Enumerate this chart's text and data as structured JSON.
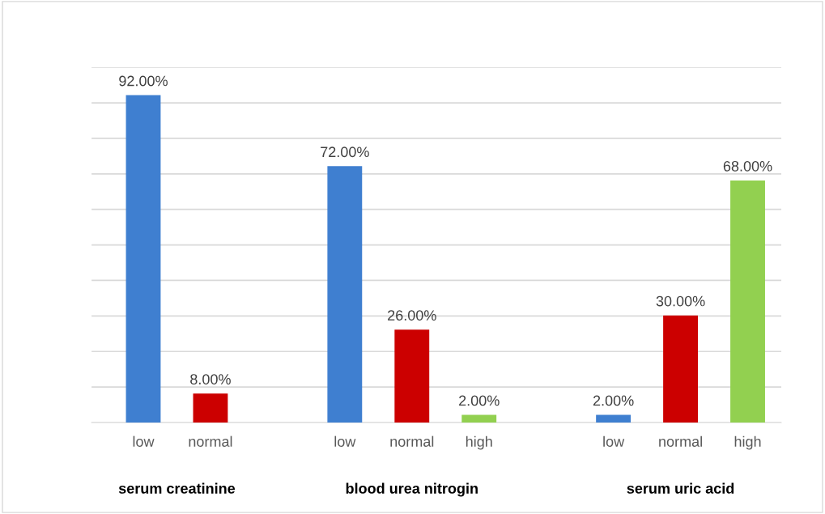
{
  "chart_data": {
    "type": "bar",
    "categories": [
      "low",
      "normal",
      null,
      "low",
      "normal",
      "high",
      null,
      "low",
      "normal",
      "high"
    ],
    "values": [
      92,
      8,
      null,
      72,
      26,
      2,
      null,
      2,
      30,
      68
    ],
    "colors": [
      "#3f7fd0",
      "#cc0000",
      "#cc0000",
      "#3f7fd0",
      "#cc0000",
      "#92d050",
      "#92d050",
      "#3f7fd0",
      "#cc0000",
      "#92d050"
    ],
    "value_labels": [
      "92.00%",
      "8.00%",
      null,
      "72.00%",
      "26.00%",
      "2.00%",
      null,
      "2.00%",
      "30.00%",
      "68.00%"
    ],
    "annotations": [
      "serum creatinine",
      "blood urea nitrogin",
      "serum uric acid"
    ],
    "ylim": [
      0,
      100
    ],
    "yticks": [
      {
        "value": 0,
        "label": null
      },
      {
        "value": 10,
        "label": null
      },
      {
        "value": 20,
        "label": null
      },
      {
        "value": 30,
        "label": null
      },
      {
        "value": 40,
        "label": null
      },
      {
        "value": 50,
        "label": null
      },
      {
        "value": 60,
        "label": null
      },
      {
        "value": 70,
        "label": null
      },
      {
        "value": 80,
        "label": null
      },
      {
        "value": 90,
        "label": null
      },
      {
        "value": 100,
        "label": null
      }
    ],
    "grid": "y",
    "tick_labels": "x"
  }
}
